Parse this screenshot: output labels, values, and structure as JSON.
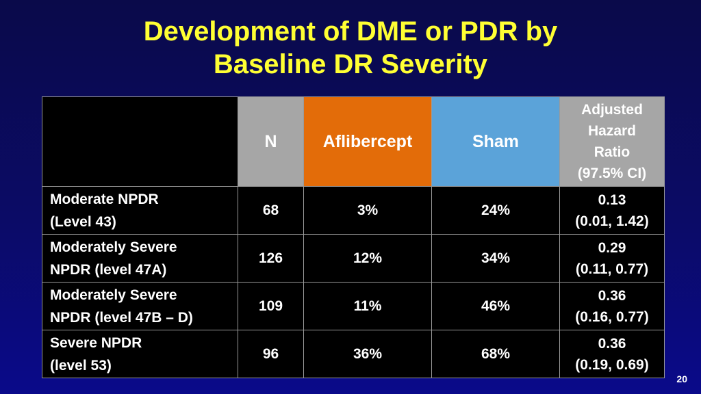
{
  "title": {
    "line1": "Development of DME or PDR by",
    "line2": "Baseline DR Severity"
  },
  "table": {
    "headers": {
      "n": "N",
      "aflibercept": "Aflibercept",
      "sham": "Sham",
      "hazard_line1": "Adjusted",
      "hazard_line2": "Hazard",
      "hazard_line3": "Ratio",
      "hazard_line4": "(97.5% CI)"
    },
    "rows": [
      {
        "label1": "Moderate NPDR",
        "label2": "(Level 43)",
        "n": "68",
        "aflibercept": "3%",
        "sham": "24%",
        "hr": "0.13",
        "ci": "(0.01, 1.42)"
      },
      {
        "label1": "Moderately Severe",
        "label2": "NPDR (level 47A)",
        "n": "126",
        "aflibercept": "12%",
        "sham": "34%",
        "hr": "0.29",
        "ci": "(0.11, 0.77)"
      },
      {
        "label1": "Moderately Severe",
        "label2": "NPDR (level 47B – D)",
        "n": "109",
        "aflibercept": "11%",
        "sham": "46%",
        "hr": "0.36",
        "ci": "(0.16, 0.77)"
      },
      {
        "label1": "Severe NPDR",
        "label2": "(level 53)",
        "n": "96",
        "aflibercept": "36%",
        "sham": "68%",
        "hr": "0.36",
        "ci": "(0.19, 0.69)"
      }
    ],
    "colors": {
      "n_header": "#a6a6a6",
      "aflibercept_header": "#e36c09",
      "sham_header": "#5ba3d9",
      "hazard_header": "#a6a6a6"
    }
  },
  "page_number": "20"
}
